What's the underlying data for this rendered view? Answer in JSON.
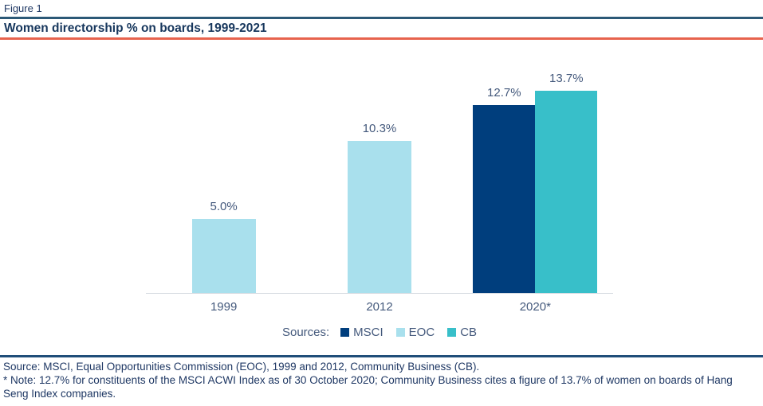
{
  "figure_label": "Figure 1",
  "title": "Women directorship % on boards, 1999-2021",
  "chart_data": {
    "type": "bar",
    "title": "Women directorship % on boards, 1999-2021",
    "categories": [
      "1999",
      "2012",
      "2020*"
    ],
    "series": [
      {
        "name": "MSCI",
        "color": "#003E7D",
        "values": [
          null,
          null,
          12.7
        ]
      },
      {
        "name": "EOC",
        "color": "#A9E0ED",
        "values": [
          5.0,
          10.3,
          null
        ]
      },
      {
        "name": "CB",
        "color": "#38BFC9",
        "values": [
          null,
          null,
          13.7
        ]
      }
    ],
    "value_labels": [
      "5.0%",
      "10.3%",
      "12.7%",
      "13.7%"
    ],
    "ylim": [
      0,
      16
    ],
    "grid": false,
    "legend_position": "bottom",
    "legend_prefix": "Sources:"
  },
  "legend": {
    "prefix": "Sources:"
  },
  "footer": {
    "source_text": "Source: MSCI, Equal Opportunities Commission (EOC), 1999 and 2012, Community Business (CB).",
    "note_text": "* Note: 12.7% for constituents of the MSCI ACWI Index as of 30 October 2020; Community Business cites a figure of 13.7% of women on boards of Hang Seng Index companies."
  },
  "colors": {
    "rule_top": "#2C5977",
    "rule_title": "#E7634D",
    "rule_footer": "#1F4E79",
    "figure_label_text": "#1F3864",
    "title_text": "#17375D",
    "axis_label_text": "#44597C",
    "footer_text": "#1F3864",
    "bar_msci": "#003E7D",
    "bar_eoc": "#A9E0ED",
    "bar_cb": "#38BFC9"
  }
}
